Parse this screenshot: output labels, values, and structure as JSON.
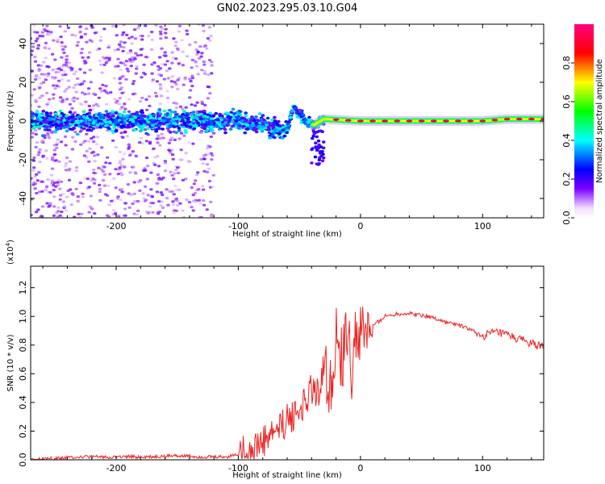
{
  "title": "GN02.2023.295.03.10.G04",
  "chart_data": [
    {
      "type": "heatmap",
      "xlabel": "Height of straight line (km)",
      "ylabel": "Frequency (Hz)",
      "xlim": [
        -270,
        150
      ],
      "ylim": [
        -50,
        50
      ],
      "x_ticks": [
        -200,
        -100,
        0,
        100
      ],
      "y_ticks": [
        -40,
        -20,
        0,
        20,
        40
      ],
      "colorbar": {
        "label": "Normalized spectral amplitude",
        "range": [
          0.0,
          1.0
        ],
        "ticks": [
          "0.0",
          "0.2",
          "0.4",
          "0.6",
          "0.8"
        ],
        "colormap": [
          "#ffffff",
          "#ffffff",
          "#7d00ff",
          "#0000ff",
          "#00ffff",
          "#00ff00",
          "#ffff00",
          "#ff0000",
          "#ff0080"
        ]
      },
      "ridge": [
        {
          "x": -270,
          "y": 0
        },
        {
          "x": -100,
          "y": 0
        },
        {
          "x": -80,
          "y": -2
        },
        {
          "x": -60,
          "y": -5
        },
        {
          "x": -55,
          "y": 7
        },
        {
          "x": -45,
          "y": 0
        },
        {
          "x": -38,
          "y": -2
        },
        {
          "x": -30,
          "y": 1
        },
        {
          "x": 0,
          "y": 0
        },
        {
          "x": 100,
          "y": 0
        },
        {
          "x": 120,
          "y": 1
        },
        {
          "x": 150,
          "y": 1
        }
      ]
    },
    {
      "type": "line",
      "xlabel": "Height of straight line (km)",
      "ylabel": "SNR (10 * v/v)",
      "multiplier": "(x10^4)",
      "xlim": [
        -270,
        150
      ],
      "ylim": [
        0,
        1.35
      ],
      "x_ticks": [
        -200,
        -100,
        0,
        100
      ],
      "y_ticks": [
        "0.0",
        "0.2",
        "0.4",
        "0.6",
        "0.8",
        "1.0",
        "1.2"
      ],
      "color": "#ee2222",
      "series": [
        {
          "x": [
            -270,
            -250,
            -230,
            -210,
            -190,
            -170,
            -150,
            -130,
            -110,
            -100,
            -90,
            -80,
            -70,
            -60,
            -50,
            -40,
            -35,
            -30,
            -25,
            -20,
            -15,
            -10,
            -8,
            -5,
            0,
            10,
            20,
            30,
            40,
            50,
            60,
            70,
            80,
            90,
            95,
            100,
            110,
            120,
            130,
            140,
            150
          ],
          "values": [
            0.0,
            0.01,
            0.02,
            0.02,
            0.02,
            0.02,
            0.03,
            0.02,
            0.02,
            0.04,
            0.07,
            0.12,
            0.2,
            0.27,
            0.35,
            0.5,
            0.45,
            0.65,
            0.45,
            0.85,
            0.7,
            0.95,
            0.55,
            0.82,
            0.87,
            0.93,
            1.0,
            1.02,
            1.02,
            1.01,
            0.99,
            0.96,
            0.94,
            0.91,
            0.88,
            0.86,
            0.89,
            0.87,
            0.84,
            0.81,
            0.78
          ]
        }
      ]
    }
  ]
}
